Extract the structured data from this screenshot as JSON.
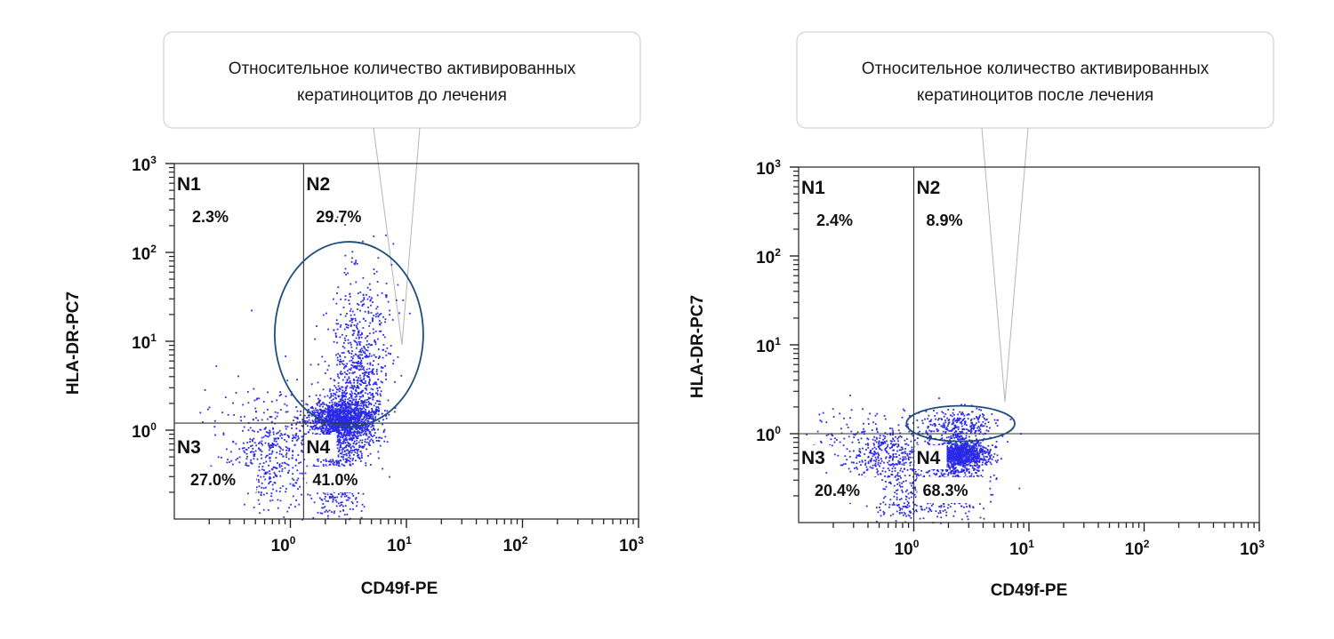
{
  "chart_data": [
    {
      "type": "scatter",
      "title": "",
      "callout": [
        "Относительное количество активированных",
        "кератиноцитов до лечения"
      ],
      "xlabel": "CD49f-PE",
      "ylabel": "HLA-DR-PC7",
      "x_scale": "log",
      "y_scale": "log",
      "xlim": [
        0.1,
        1000
      ],
      "ylim": [
        0.1,
        1000
      ],
      "x_ticks": [
        {
          "base": "10",
          "exp": "0",
          "value": 1
        },
        {
          "base": "10",
          "exp": "1",
          "value": 10
        },
        {
          "base": "10",
          "exp": "2",
          "value": 100
        },
        {
          "base": "10",
          "exp": "3",
          "value": 1000
        }
      ],
      "y_ticks": [
        {
          "base": "10",
          "exp": "0",
          "value": 1
        },
        {
          "base": "10",
          "exp": "1",
          "value": 10
        },
        {
          "base": "10",
          "exp": "2",
          "value": 100
        },
        {
          "base": "10",
          "exp": "3",
          "value": 1000
        }
      ],
      "gate_x": 1.3,
      "gate_y": 1.2,
      "quadrants": [
        {
          "name": "N1",
          "percent": "2.3%"
        },
        {
          "name": "N2",
          "percent": "29.7%"
        },
        {
          "name": "N3",
          "percent": "27.0%"
        },
        {
          "name": "N4",
          "percent": "41.0%"
        }
      ],
      "gate_ellipse": {
        "cx": 3.2,
        "cy": 12,
        "rx_decades": 0.64,
        "ry_decades": 1.04
      },
      "point_color": "#2a2ae8",
      "ellipse_color": "#1e4d7a"
    },
    {
      "type": "scatter",
      "title": "",
      "callout": [
        "Относительное количество активированных",
        "кератиноцитов после лечения"
      ],
      "xlabel": "CD49f-PE",
      "ylabel": "HLA-DR-PC7",
      "x_scale": "log",
      "y_scale": "log",
      "xlim": [
        0.1,
        1000
      ],
      "ylim": [
        0.1,
        1000
      ],
      "x_ticks": [
        {
          "base": "10",
          "exp": "0",
          "value": 1
        },
        {
          "base": "10",
          "exp": "1",
          "value": 10
        },
        {
          "base": "10",
          "exp": "2",
          "value": 100
        },
        {
          "base": "10",
          "exp": "3",
          "value": 1000
        }
      ],
      "y_ticks": [
        {
          "base": "10",
          "exp": "0",
          "value": 1
        },
        {
          "base": "10",
          "exp": "1",
          "value": 10
        },
        {
          "base": "10",
          "exp": "2",
          "value": 100
        },
        {
          "base": "10",
          "exp": "3",
          "value": 1000
        }
      ],
      "gate_x": 1.0,
      "gate_y": 1.0,
      "quadrants": [
        {
          "name": "N1",
          "percent": "2.4%"
        },
        {
          "name": "N2",
          "percent": "8.9%"
        },
        {
          "name": "N3",
          "percent": "20.4%"
        },
        {
          "name": "N4",
          "percent": "68.3%"
        }
      ],
      "gate_ellipse": {
        "cx": 2.55,
        "cy": 1.3,
        "rx_decades": 0.47,
        "ry_decades": 0.2
      },
      "point_color": "#2a2ae8",
      "ellipse_color": "#1e4d7a"
    }
  ]
}
